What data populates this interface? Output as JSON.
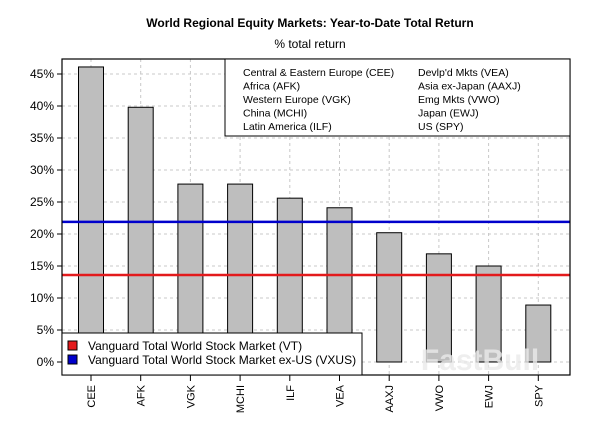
{
  "chart_data": {
    "type": "bar",
    "title": "World Regional Equity Markets: Year-to-Date Total Return",
    "subtitle": "% total return",
    "categories": [
      "CEE",
      "AFK",
      "VGK",
      "MCHI",
      "ILF",
      "VEA",
      "AAXJ",
      "VWO",
      "EWJ",
      "SPY"
    ],
    "values": [
      46.1,
      39.8,
      27.8,
      27.8,
      25.6,
      24.1,
      20.2,
      16.9,
      15.0,
      8.9
    ],
    "ylim": [
      -2,
      47
    ],
    "yticks": [
      "0%",
      "5%",
      "10%",
      "15%",
      "20%",
      "25%",
      "30%",
      "35%",
      "40%",
      "45%"
    ],
    "ytick_values": [
      0,
      5,
      10,
      15,
      20,
      25,
      30,
      35,
      40,
      45
    ],
    "grid": true,
    "bar_color": "#bebebe",
    "reference_lines": [
      {
        "name": "Vanguard Total World Stock Market (VT)",
        "value": 13.6,
        "color": "#e31a1c"
      },
      {
        "name": "Vanguard Total World Stock Market ex-US (VXUS)",
        "value": 21.9,
        "color": "#0000cc"
      }
    ],
    "category_legend": {
      "placement": "top-right",
      "col1": [
        "Central & Eastern Europe (CEE)",
        "Africa (AFK)",
        "Western Europe (VGK)",
        "China (MCHI)",
        "Latin America (ILF)"
      ],
      "col2": [
        "Devlp'd Mkts (VEA)",
        "Asia ex-Japan (AAXJ)",
        "Emg Mkts (VWO)",
        "Japan (EWJ)",
        "US (SPY)"
      ]
    },
    "line_legend_placement": "bottom-left"
  },
  "watermark": "FastBull"
}
